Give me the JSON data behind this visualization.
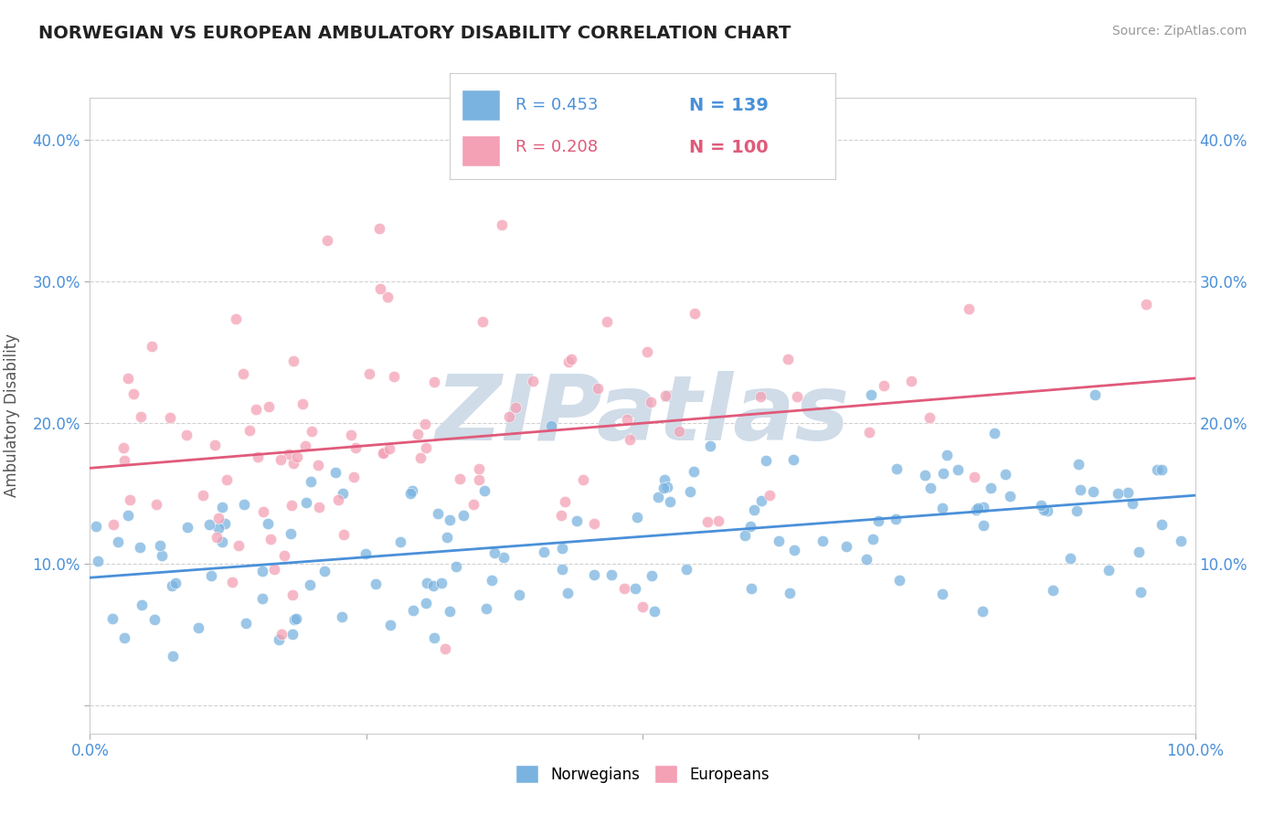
{
  "title": "NORWEGIAN VS EUROPEAN AMBULATORY DISABILITY CORRELATION CHART",
  "source": "Source: ZipAtlas.com",
  "ylabel": "Ambulatory Disability",
  "xlim": [
    0.0,
    1.0
  ],
  "ylim": [
    -0.02,
    0.43
  ],
  "xticks": [
    0.0,
    0.25,
    0.5,
    0.75,
    1.0
  ],
  "xticklabels": [
    "0.0%",
    "",
    "",
    "",
    "100.0%"
  ],
  "yticks": [
    0.0,
    0.1,
    0.2,
    0.3,
    0.4
  ],
  "norwegian_R": 0.453,
  "norwegian_N": 139,
  "european_R": 0.208,
  "european_N": 100,
  "norwegian_color": "#7ab3e0",
  "european_color": "#f4a0b5",
  "norwegian_line_color": "#4a90d9",
  "european_line_color": "#e05a7a",
  "background_color": "#ffffff",
  "grid_color": "#cccccc",
  "title_color": "#222222",
  "watermark_color": "#d0dce8",
  "watermark_text": "ZIPatlas",
  "seed": 42
}
